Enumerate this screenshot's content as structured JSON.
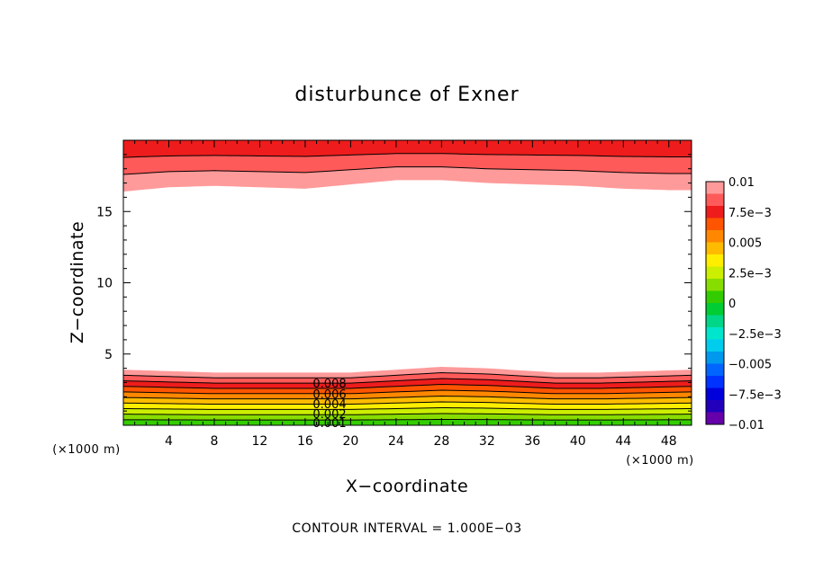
{
  "chart_data": {
    "type": "heatmap",
    "title": "disturbunce of Exner",
    "xlabel": "X−coordinate",
    "ylabel": "Z−coordinate",
    "x_unit": "(×1000 m)",
    "y_unit": "(×1000 m)",
    "xlim": [
      0,
      50
    ],
    "ylim": [
      0,
      20
    ],
    "x_ticks": [
      4,
      8,
      12,
      16,
      20,
      24,
      28,
      32,
      36,
      40,
      44,
      48
    ],
    "y_ticks": [
      5,
      10,
      15
    ],
    "grid": false,
    "colorbar": {
      "vmin": -0.01,
      "vmax": 0.01,
      "tick_values": [
        0.01,
        0.0075,
        0.005,
        0.0025,
        0,
        -0.0025,
        -0.005,
        -0.0075,
        -0.01
      ],
      "tick_labels": [
        "0.01",
        "7.5e−3",
        "0.005",
        "2.5e−3",
        "0",
        "−2.5e−3",
        "−0.005",
        "−7.5e−3",
        "−0.01"
      ],
      "colors_top_to_bottom": [
        "#ff9a9a",
        "#ff5a5a",
        "#ee1c1c",
        "#ff5500",
        "#ff8800",
        "#ffbb00",
        "#ffee00",
        "#ccee00",
        "#88dd00",
        "#33cc00",
        "#00cc33",
        "#00d688",
        "#00e6cc",
        "#00ccee",
        "#0099ee",
        "#0066ff",
        "#0033ff",
        "#0000dd",
        "#2200bb",
        "#6600aa"
      ]
    },
    "contour_interval": 0.001,
    "contour_note": "CONTOUR INTERVAL = 1.000E−03",
    "contour_labels": [
      "0.008",
      "0.006",
      "0.004",
      "0.002",
      "0.001"
    ],
    "lower_band_top_km": [
      [
        0,
        3.9
      ],
      [
        4,
        3.8
      ],
      [
        8,
        3.7
      ],
      [
        12,
        3.7
      ],
      [
        16,
        3.7
      ],
      [
        20,
        3.7
      ],
      [
        24,
        3.9
      ],
      [
        28,
        4.1
      ],
      [
        32,
        4.0
      ],
      [
        34,
        3.9
      ],
      [
        38,
        3.7
      ],
      [
        42,
        3.7
      ],
      [
        46,
        3.8
      ],
      [
        50,
        3.9
      ]
    ],
    "upper_band_bottom_km": [
      [
        0,
        16.4
      ],
      [
        4,
        16.7
      ],
      [
        8,
        16.8
      ],
      [
        12,
        16.7
      ],
      [
        16,
        16.6
      ],
      [
        20,
        16.9
      ],
      [
        24,
        17.2
      ],
      [
        28,
        17.2
      ],
      [
        32,
        17.0
      ],
      [
        36,
        16.9
      ],
      [
        40,
        16.8
      ],
      [
        44,
        16.6
      ],
      [
        48,
        16.5
      ],
      [
        50,
        16.5
      ]
    ]
  }
}
